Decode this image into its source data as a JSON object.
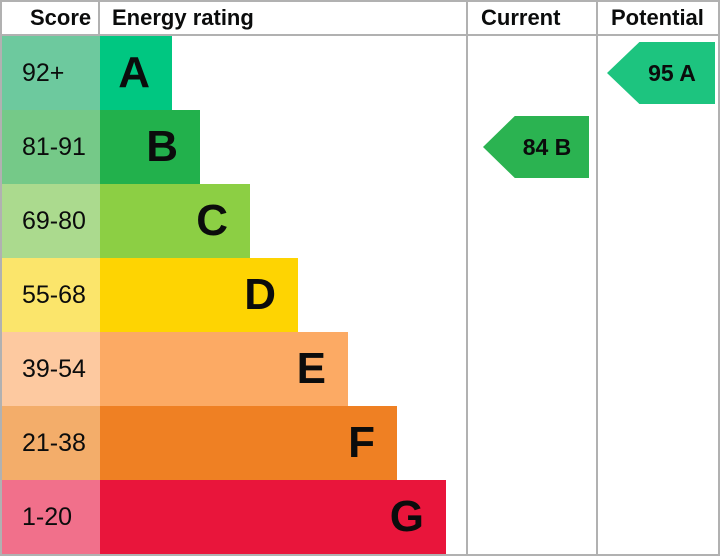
{
  "header": {
    "score": "Score",
    "energy_rating": "Energy rating",
    "current": "Current",
    "potential": "Potential"
  },
  "bands": [
    {
      "letter": "A",
      "score": "92+",
      "bar_color": "#00c781",
      "score_color": "#6dc99e"
    },
    {
      "letter": "B",
      "score": "81-91",
      "bar_color": "#22b14c",
      "score_color": "#75c988"
    },
    {
      "letter": "C",
      "score": "69-80",
      "bar_color": "#8ccf44",
      "score_color": "#abda8e"
    },
    {
      "letter": "D",
      "score": "55-68",
      "bar_color": "#fed402",
      "score_color": "#fbe56b"
    },
    {
      "letter": "E",
      "score": "39-54",
      "bar_color": "#fcaa64",
      "score_color": "#fdc9a0"
    },
    {
      "letter": "F",
      "score": "21-38",
      "bar_color": "#ef8023",
      "score_color": "#f3ad6a"
    },
    {
      "letter": "G",
      "score": "1-20",
      "bar_color": "#e9153b",
      "score_color": "#f1708b"
    }
  ],
  "current": {
    "label": "84 B",
    "color": "#2bb351"
  },
  "potential": {
    "label": "95 A",
    "color": "#1dc47f"
  },
  "grid_color": "#b1b1b1",
  "text_color": "#0b0c0c",
  "chart_data": {
    "type": "bar",
    "orientation": "horizontal",
    "title": "Energy rating",
    "categories": [
      "A",
      "B",
      "C",
      "D",
      "E",
      "F",
      "G"
    ],
    "score_ranges": [
      "92+",
      "81-91",
      "69-80",
      "55-68",
      "39-54",
      "21-38",
      "1-20"
    ],
    "bar_lengths_relative": [
      0.2,
      0.27,
      0.41,
      0.54,
      0.68,
      0.81,
      0.95
    ],
    "bar_colors": [
      "#00c781",
      "#22b14c",
      "#8ccf44",
      "#fed402",
      "#fcaa64",
      "#ef8023",
      "#e9153b"
    ],
    "current_rating": {
      "value": 84,
      "band": "B",
      "column": "Current"
    },
    "potential_rating": {
      "value": 95,
      "band": "A",
      "column": "Potential"
    },
    "legend_position": "none",
    "grid": false
  }
}
